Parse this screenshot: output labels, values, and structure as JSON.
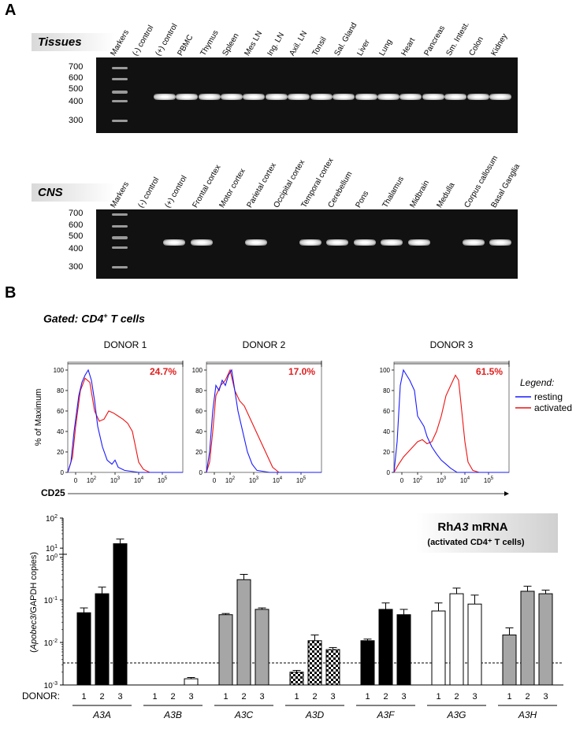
{
  "panelA": {
    "letter": "A",
    "tissues": {
      "label": "Tissues",
      "lanes": [
        "Markers",
        "(-) control",
        "(+) control",
        "PBMC",
        "Thymus",
        "Spleen",
        "Mes LN",
        "Ing. LN",
        "Axil. LN",
        "Tonsil",
        "Sal. Gland",
        "Liver",
        "Lung",
        "Heart",
        "Pancreas",
        "Sm. Intest.",
        "Colon",
        "Kidney"
      ],
      "bands": [
        0,
        0,
        1,
        1,
        1,
        1,
        1,
        1,
        1,
        1,
        1,
        1,
        1,
        1,
        1,
        1,
        1,
        1
      ],
      "markers": [
        "700",
        "600",
        "500",
        "400",
        "300"
      ]
    },
    "cns": {
      "label": "CNS",
      "lanes": [
        "Markers",
        "(-) control",
        "(+) control",
        "Frontal cortex",
        "Motor cortex",
        "Parietal cortex",
        "Occipital cortex",
        "Temporal cortex",
        "Cerebellum",
        "Pons",
        "Thalamus",
        "Midbrain",
        "Medulla",
        "Corpus callosum",
        "Basal Ganglia"
      ],
      "bands": [
        0,
        0,
        1,
        1,
        0,
        1,
        0,
        1,
        1,
        1,
        1,
        1,
        0,
        1,
        1
      ],
      "markers": [
        "700",
        "600",
        "500",
        "400",
        "300"
      ]
    }
  },
  "panelB": {
    "letter": "B",
    "gated_prefix": "Gated: CD4",
    "gated_sup": "+",
    "gated_suffix": " T cells",
    "ylabel": "% of Maximum",
    "xlabel": "CD25",
    "legend": {
      "title": "Legend:",
      "resting": "resting",
      "activated": "activated",
      "resting_color": "#1a1aff",
      "activated_color": "#ee1111"
    },
    "donors": [
      {
        "title": "DONOR 1",
        "pct": "24.7%"
      },
      {
        "title": "DONOR 2",
        "pct": "17.0%"
      },
      {
        "title": "DONOR 3",
        "pct": "61.5%"
      }
    ],
    "hist_yticks": [
      "0",
      "20",
      "40",
      "60",
      "80",
      "100"
    ],
    "hist_xticks": [
      "0",
      "10",
      "10",
      "10",
      "10"
    ],
    "hist_xsups": [
      "",
      "2",
      "3",
      "4",
      "5"
    ]
  },
  "bar_chart": {
    "title_prefix": "Rh",
    "title_gene": "A3",
    "title_suffix": " mRNA",
    "subtitle": "(activated CD4⁺ T cells)",
    "ylabel_gene": "Apobec3",
    "ylabel_rest": "/GAPDH copies)",
    "donor_label": "DONOR:",
    "donor_numbers": [
      "1",
      "2",
      "3"
    ],
    "yticks_upper": [
      {
        "base": "10",
        "exp": "2"
      },
      {
        "base": "10",
        "exp": "1"
      }
    ],
    "yticks_lower": [
      {
        "base": "10",
        "exp": "0"
      },
      {
        "base": "10",
        "exp": "-1"
      },
      {
        "base": "10",
        "exp": "-2"
      },
      {
        "base": "10",
        "exp": "-3"
      }
    ]
  },
  "chart_data": [
    {
      "type": "bar",
      "title": "RhA3 mRNA",
      "subtitle": "(activated CD4+ T cells)",
      "ylabel": "(Apobec3/GAPDH copies)",
      "yscale": "log",
      "ylim": [
        0.001,
        100
      ],
      "axis_break": [
        1,
        8
      ],
      "threshold": 0.0033,
      "categories": [
        "A3A",
        "A3B",
        "A3C",
        "A3D",
        "A3F",
        "A3G",
        "A3H"
      ],
      "series": [
        {
          "name": "1",
          "values": [
            0.05,
            0,
            0.045,
            0.002,
            0.011,
            0.055,
            0.015
          ],
          "errors": [
            0.015,
            0,
            0.003,
            0.0002,
            0.001,
            0.03,
            0.007
          ]
        },
        {
          "name": "2",
          "values": [
            0.14,
            0,
            0.3,
            0.011,
            0.06,
            0.14,
            0.16
          ],
          "errors": [
            0.06,
            0,
            0.1,
            0.004,
            0.025,
            0.05,
            0.05
          ]
        },
        {
          "name": "3",
          "values": [
            14,
            0.0014,
            0.06,
            0.0068,
            0.045,
            0.08,
            0.14
          ],
          "errors": [
            6,
            0.0001,
            0.005,
            0.0008,
            0.015,
            0.05,
            0.03
          ]
        }
      ],
      "fills": [
        "#000000",
        "#ffffff",
        "#a6a6a6",
        "checker",
        "#000000",
        "#ffffff",
        "#a6a6a6"
      ]
    }
  ]
}
